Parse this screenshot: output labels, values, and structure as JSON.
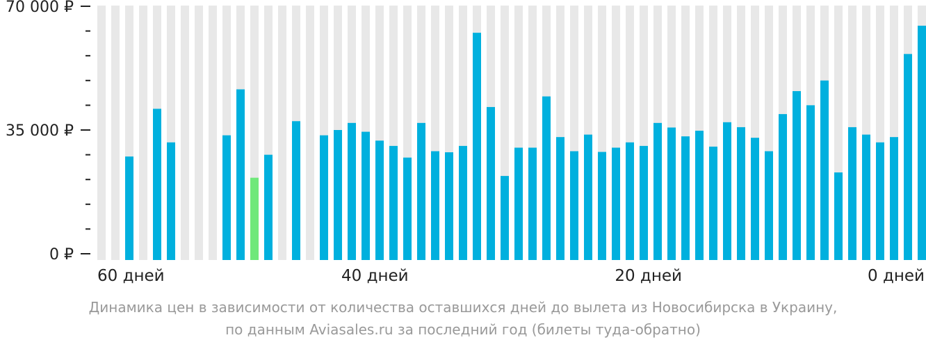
{
  "chart_data": {
    "type": "bar",
    "y_tick_labels": [
      "70 000 ₽",
      "35 000 ₽",
      "0 ₽"
    ],
    "y_tick_values": [
      70000,
      35000,
      0
    ],
    "x_tick_labels": [
      "60 дней",
      "40 дней",
      "20 дней",
      "0 дней"
    ],
    "ylim": [
      0,
      70000
    ],
    "x_range": [
      60,
      0
    ],
    "series": [
      {
        "values": [
          null,
          null,
          27500,
          null,
          41000,
          31500,
          null,
          null,
          null,
          33500,
          46500,
          21500,
          28000,
          null,
          37500,
          null,
          33500,
          35000,
          37000,
          34500,
          32000,
          30500,
          27200,
          37000,
          29000,
          28700,
          30500,
          62500,
          41500,
          22000,
          30000,
          30000,
          44500,
          33000,
          29000,
          33700,
          28800,
          30000,
          31500,
          30500,
          37000,
          35700,
          33200,
          34800,
          30300,
          37200,
          35800,
          32800,
          29000,
          39500,
          46000,
          42000,
          49000,
          23000,
          35800,
          33700,
          31500,
          33000,
          56500,
          64500
        ]
      }
    ],
    "highlight_index": 11,
    "colors": {
      "bar": "#00b0de",
      "highlight": "#6fe87a",
      "background_column": "#e8e8e8",
      "axis": "#222222",
      "caption": "#999999"
    },
    "caption": [
      "Динамика цен в зависимости от количества оставшихся дней до вылета из Новосибирска в Украину,",
      "по данным Aviasales.ru за последний год (билеты туда-обратно)"
    ]
  }
}
